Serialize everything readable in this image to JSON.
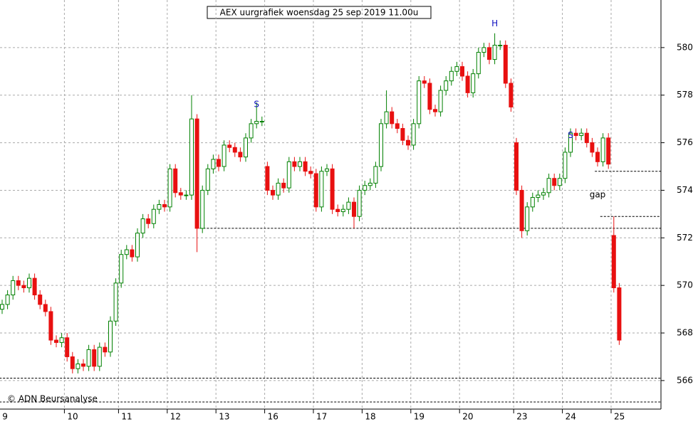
{
  "chart_data": {
    "type": "candlestick",
    "title": "AEX uurgrafiek woensdag 25 sep 2019 11.00u",
    "credit": "© ADN Beursanalyse",
    "up_color": "#008000",
    "down_color": "#e81010",
    "grid": true,
    "ylim": [
      564.8,
      582.0
    ],
    "yticks": [
      566,
      568,
      570,
      572,
      574,
      576,
      578,
      580
    ],
    "categories": [
      "9",
      null,
      null,
      null,
      null,
      null,
      null,
      null,
      null,
      null,
      null,
      null,
      "10",
      null,
      null,
      null,
      null,
      null,
      null,
      null,
      null,
      null,
      "11",
      null,
      null,
      null,
      null,
      null,
      null,
      null,
      null,
      "12",
      null,
      null,
      null,
      null,
      null,
      null,
      null,
      null,
      "13",
      null,
      null,
      null,
      null,
      null,
      null,
      null,
      null,
      "16",
      null,
      null,
      null,
      null,
      null,
      null,
      null,
      null,
      "17",
      null,
      null,
      null,
      null,
      null,
      null,
      null,
      null,
      "18",
      null,
      null,
      null,
      null,
      null,
      null,
      null,
      null,
      "19",
      null,
      null,
      null,
      null,
      null,
      null,
      null,
      null,
      "20",
      null,
      null,
      null,
      null,
      null,
      null,
      null,
      null,
      null,
      "23",
      null,
      null,
      null,
      null,
      null,
      null,
      null,
      null,
      "24",
      null,
      null,
      null,
      null,
      null,
      null,
      null,
      null,
      "25",
      null
    ],
    "open": [
      569.0,
      569.2,
      569.6,
      570.2,
      570.0,
      569.9,
      570.3,
      569.6,
      569.2,
      568.9,
      567.7,
      567.6,
      567.8,
      567.0,
      566.5,
      566.7,
      566.6,
      567.3,
      566.6,
      567.4,
      567.2,
      568.5,
      570.1,
      571.3,
      571.5,
      571.2,
      572.2,
      572.8,
      572.6,
      573.2,
      573.4,
      573.3,
      574.9,
      573.9,
      573.8,
      573.8,
      577.0,
      572.4,
      574.0,
      574.9,
      575.3,
      575.0,
      575.9,
      575.8,
      575.6,
      575.4,
      576.2,
      576.8,
      576.9,
      575.0,
      574.0,
      573.8,
      574.3,
      574.1,
      575.2,
      575.0,
      575.2,
      574.8,
      574.7,
      573.3,
      574.8,
      574.9,
      573.2,
      573.1,
      573.2,
      573.5,
      572.9,
      574.0,
      574.2,
      574.3,
      575.0,
      576.8,
      577.3,
      576.8,
      576.6,
      576.1,
      575.9,
      576.8,
      578.6,
      578.5,
      577.4,
      577.3,
      578.2,
      578.6,
      579.0,
      579.2,
      578.8,
      578.1,
      578.9,
      579.8,
      580.0,
      579.5,
      580.1,
      580.1,
      578.5,
      576.0,
      574.0,
      572.3,
      573.3,
      573.7,
      573.8,
      573.9,
      574.5,
      574.2,
      574.5,
      575.6,
      576.4,
      576.3,
      576.4,
      576.0,
      575.6,
      575.2,
      576.2,
      572.1,
      569.9
    ],
    "high": [
      569.4,
      569.8,
      570.4,
      570.4,
      570.2,
      570.5,
      570.5,
      569.8,
      569.4,
      569.1,
      567.9,
      568.0,
      568.0,
      567.2,
      566.9,
      566.9,
      567.5,
      567.5,
      567.6,
      567.6,
      568.7,
      570.3,
      571.5,
      571.7,
      571.7,
      572.4,
      573.0,
      573.0,
      573.4,
      573.6,
      573.6,
      575.1,
      575.1,
      574.1,
      574.0,
      578.0,
      577.2,
      574.2,
      575.1,
      575.5,
      575.5,
      576.1,
      576.1,
      576.0,
      575.8,
      576.4,
      577.0,
      577.7,
      577.1,
      575.2,
      574.2,
      574.5,
      574.5,
      575.4,
      575.4,
      575.4,
      575.4,
      575.0,
      574.9,
      575.0,
      575.1,
      575.1,
      573.4,
      573.4,
      573.7,
      573.7,
      574.2,
      574.4,
      574.5,
      575.2,
      577.0,
      578.2,
      577.5,
      577.0,
      576.8,
      576.3,
      577.0,
      578.8,
      578.8,
      578.7,
      577.6,
      578.4,
      578.8,
      579.2,
      579.4,
      579.4,
      579.0,
      579.1,
      580.0,
      580.2,
      580.2,
      580.6,
      580.3,
      580.3,
      578.7,
      576.2,
      574.2,
      573.5,
      573.9,
      574.0,
      574.1,
      574.7,
      574.7,
      574.7,
      575.8,
      576.6,
      576.6,
      576.6,
      576.6,
      576.2,
      575.8,
      576.4,
      576.4,
      572.9,
      570.1
    ],
    "low": [
      568.8,
      569.0,
      569.4,
      569.8,
      569.7,
      569.7,
      569.4,
      569.0,
      568.7,
      567.5,
      567.4,
      567.4,
      566.8,
      566.3,
      566.3,
      566.4,
      566.4,
      566.4,
      566.4,
      567.0,
      567.0,
      568.3,
      569.9,
      571.1,
      571.0,
      571.0,
      572.0,
      572.4,
      572.4,
      573.0,
      573.1,
      573.1,
      573.7,
      573.6,
      573.6,
      573.6,
      571.4,
      572.2,
      573.8,
      574.7,
      574.8,
      574.8,
      575.6,
      575.4,
      575.2,
      575.2,
      576.0,
      576.6,
      576.7,
      573.8,
      573.6,
      573.6,
      573.9,
      573.9,
      574.8,
      574.8,
      574.6,
      574.5,
      573.1,
      573.1,
      574.6,
      573.0,
      572.9,
      572.9,
      573.0,
      572.4,
      572.7,
      573.8,
      574.0,
      574.1,
      574.8,
      576.6,
      576.6,
      576.4,
      575.9,
      575.7,
      575.7,
      576.6,
      578.3,
      577.2,
      577.1,
      577.1,
      578.0,
      578.4,
      578.8,
      578.6,
      577.9,
      577.9,
      578.7,
      579.6,
      579.3,
      579.3,
      579.9,
      578.3,
      577.3,
      573.8,
      572.0,
      572.1,
      573.1,
      573.5,
      573.6,
      573.7,
      574.0,
      574.0,
      574.3,
      575.4,
      576.1,
      576.1,
      575.8,
      575.4,
      575.0,
      575.0,
      574.9,
      569.7,
      567.5
    ],
    "close": [
      569.2,
      569.6,
      570.2,
      570.0,
      569.9,
      570.3,
      569.6,
      569.2,
      568.9,
      567.7,
      567.6,
      567.8,
      567.0,
      566.5,
      566.7,
      566.6,
      567.3,
      566.6,
      567.4,
      567.2,
      568.5,
      570.1,
      571.3,
      571.5,
      571.2,
      572.2,
      572.8,
      572.6,
      573.2,
      573.4,
      573.3,
      574.9,
      573.9,
      573.8,
      573.8,
      577.0,
      572.4,
      574.0,
      574.9,
      575.3,
      575.0,
      575.9,
      575.8,
      575.6,
      575.4,
      576.2,
      576.8,
      576.9,
      576.9,
      574.0,
      573.8,
      574.3,
      574.1,
      575.2,
      575.0,
      575.2,
      574.8,
      574.7,
      573.3,
      574.8,
      574.9,
      573.2,
      573.1,
      573.2,
      573.5,
      572.9,
      574.0,
      574.2,
      574.3,
      575.0,
      576.8,
      577.3,
      576.8,
      576.6,
      576.1,
      575.9,
      576.8,
      578.6,
      578.5,
      577.4,
      577.3,
      578.2,
      578.6,
      579.0,
      579.2,
      578.8,
      578.1,
      578.9,
      579.8,
      580.0,
      579.5,
      580.1,
      580.1,
      578.5,
      577.5,
      574.0,
      572.3,
      573.3,
      573.7,
      573.8,
      573.9,
      574.5,
      574.2,
      574.5,
      575.6,
      576.4,
      576.3,
      576.4,
      576.0,
      575.6,
      575.2,
      576.2,
      575.1,
      569.9,
      567.7
    ],
    "levels": [
      {
        "value": 572.4,
        "start": 37
      },
      {
        "value": 574.8,
        "start": 110
      },
      {
        "value": 572.9,
        "start": 111
      },
      {
        "value": 566.1,
        "start": 0
      },
      {
        "value": 565.1,
        "start": 0
      }
    ],
    "annotations": [
      {
        "text": "S",
        "x": 47,
        "y": 577.6
      },
      {
        "text": "H",
        "x": 91,
        "y": 581.0
      },
      {
        "text": "S",
        "x": 105,
        "y": 576.3
      },
      {
        "text": "gap",
        "x": 110,
        "y": 573.8
      }
    ]
  }
}
